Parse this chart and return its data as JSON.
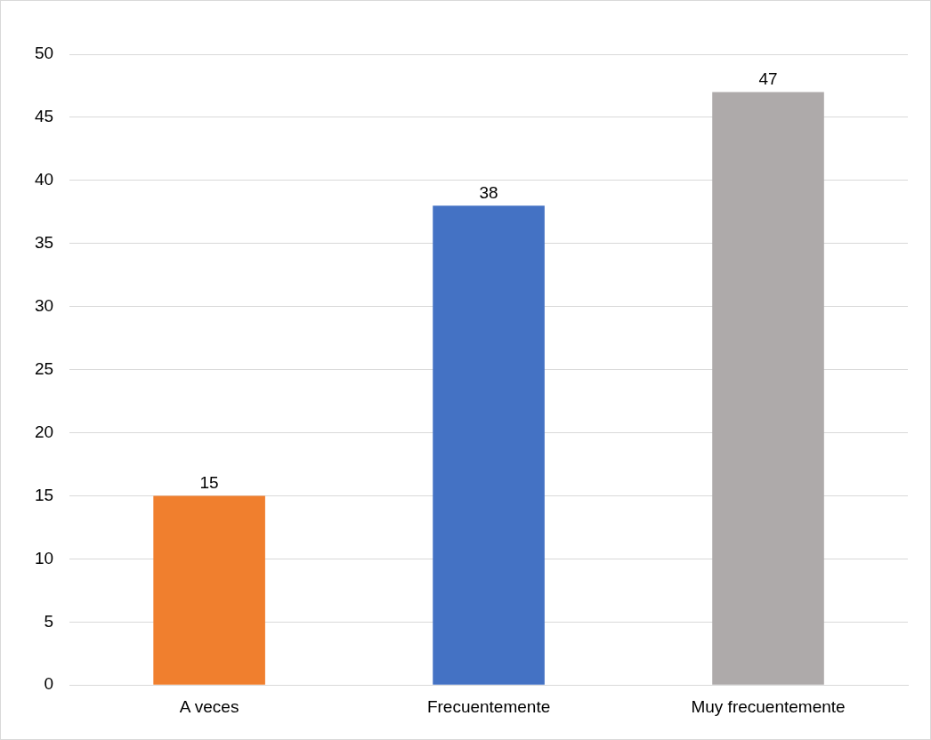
{
  "chart_data": {
    "type": "bar",
    "categories": [
      "A veces",
      "Frecuentemente",
      "Muy frecuentemente"
    ],
    "values": [
      15,
      38,
      47
    ],
    "colors": [
      "#f07f2e",
      "#4472c4",
      "#aeaaaa"
    ],
    "ylim": [
      0,
      50
    ],
    "yticks": [
      0,
      5,
      10,
      15,
      20,
      25,
      30,
      35,
      40,
      45,
      50
    ],
    "grid": "y",
    "data_labels": true,
    "legend": false
  }
}
